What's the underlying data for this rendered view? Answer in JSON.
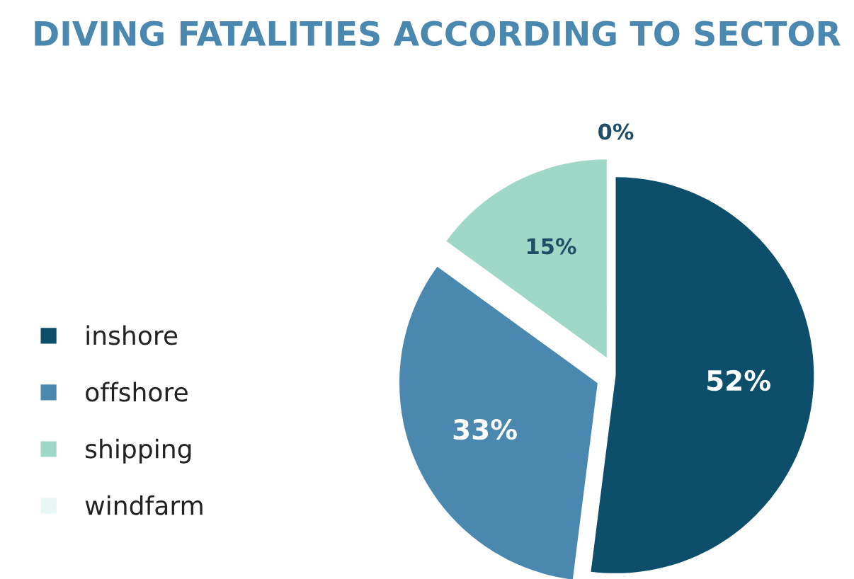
{
  "chart_data": {
    "type": "pie",
    "title": "DIVING FATALITIES ACCORDING TO SECTOR",
    "categories": [
      "inshore",
      "offshore",
      "shipping",
      "windfarm"
    ],
    "values": [
      52,
      33,
      15,
      0
    ],
    "colors": [
      "#0d4f6b",
      "#4a88b0",
      "#a0d8c8",
      "#e8f6f4"
    ],
    "value_labels": [
      "52%",
      "33%",
      "15%",
      "0%"
    ],
    "legend": "left"
  }
}
